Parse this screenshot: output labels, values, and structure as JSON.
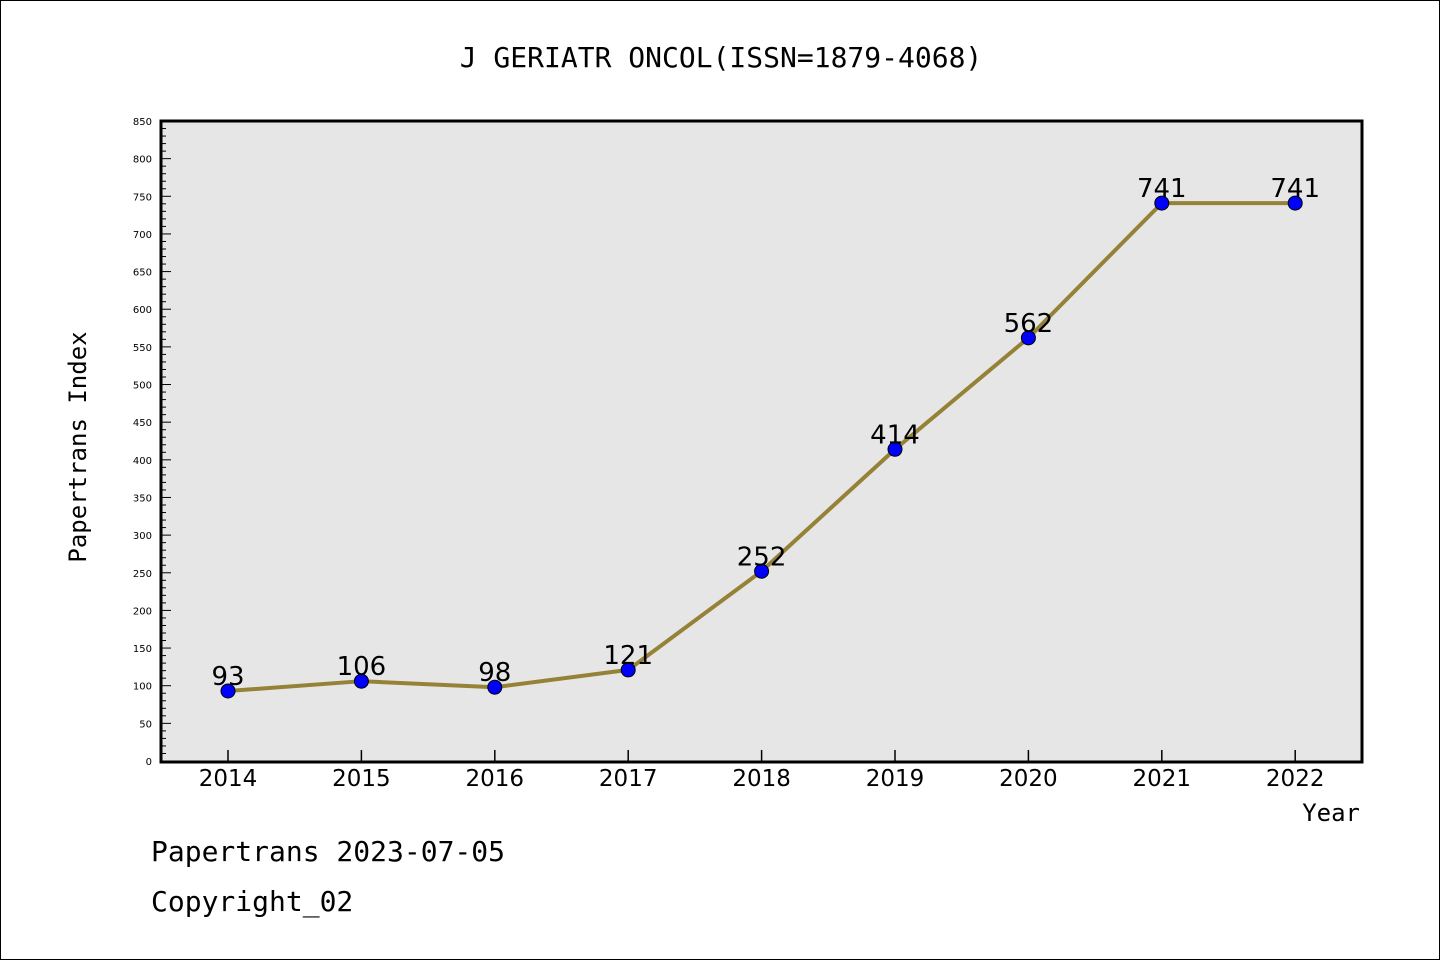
{
  "chart_data": {
    "type": "line",
    "title": "J GERIATR ONCOL(ISSN=1879-4068)",
    "xlabel": "Year",
    "ylabel": "Papertrans Index",
    "categories": [
      "2014",
      "2015",
      "2016",
      "2017",
      "2018",
      "2019",
      "2020",
      "2021",
      "2022"
    ],
    "series": [
      {
        "values": [
          93,
          106,
          98,
          121,
          252,
          414,
          562,
          741,
          741
        ]
      }
    ],
    "data_labels": [
      "93",
      "106",
      "98",
      "121",
      "252",
      "414",
      "562",
      "741",
      "741"
    ],
    "ylim": [
      0,
      850
    ],
    "y_ticks": [
      0,
      50,
      100,
      150,
      200,
      250,
      300,
      350,
      400,
      450,
      500,
      550,
      600,
      650,
      700,
      750,
      800,
      850
    ],
    "y_minor_step": 10,
    "grid": false,
    "legend": "none",
    "colors": {
      "line": "#958237",
      "marker": "#0000ff",
      "plot_background": "#e6e6e6"
    }
  },
  "footer": {
    "line1": "Papertrans 2023-07-05",
    "line2": "Copyright_02"
  }
}
